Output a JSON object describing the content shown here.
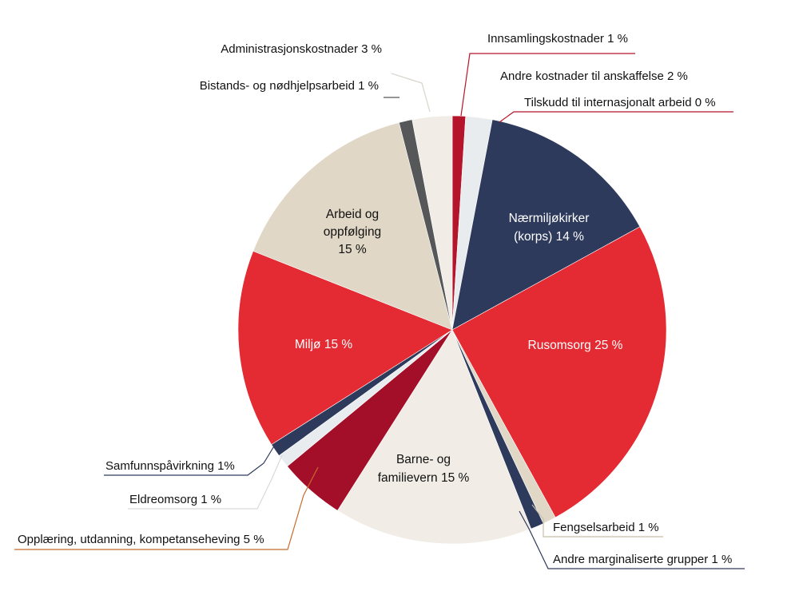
{
  "chart_data": {
    "type": "pie",
    "slices": [
      {
        "label": "Innsamlingskostnader 1 %",
        "value": 1,
        "color": "#B5152B"
      },
      {
        "label": "Andre kostnader til anskaffelse 2 %",
        "value": 2,
        "color": "#E9ECEE"
      },
      {
        "label": "Tilskudd til internasjonalt arbeid 0 %",
        "value": 0,
        "color": "#B5152B"
      },
      {
        "label": "Nærmiljøkirker (korps) 14 %",
        "value": 14,
        "color": "#2E3A5C"
      },
      {
        "label": "Rusomsorg 25 %",
        "value": 25,
        "color": "#E42A32"
      },
      {
        "label": "Fengselsarbeid 1 %",
        "value": 1,
        "color": "#E0D7C6"
      },
      {
        "label": "Andre marginaliserte grupper 1 %",
        "value": 1,
        "color": "#2E3A5C"
      },
      {
        "label": "Barne- og familievern 15 %",
        "value": 15,
        "color": "#F1EDE6"
      },
      {
        "label": "Opplæring, utdanning, kompetanseheving 5 %",
        "value": 5,
        "color": "#A30E28"
      },
      {
        "label": "Eldreomsorg 1 %",
        "value": 1,
        "color": "#E9ECEE"
      },
      {
        "label": "Samfunnspåvirkning 1%",
        "value": 1,
        "color": "#2E3A5C"
      },
      {
        "label": "Miljø 15 %",
        "value": 15,
        "color": "#E42A32"
      },
      {
        "label": "Arbeid og oppfølging 15 %",
        "value": 15,
        "color": "#E0D7C6"
      },
      {
        "label": "Bistands- og nødhjelpsarbeid 1 %",
        "value": 1,
        "color": "#555759"
      },
      {
        "label": "Administrasjonskostnader 3 %",
        "value": 3,
        "color": "#F1EDE6"
      }
    ]
  },
  "labels": {
    "innsamling": "Innsamlingskostnader 1 %",
    "andre_kostnader": "Andre kostnader til anskaffelse 2 %",
    "tilskudd": "Tilskudd til internasjonalt arbeid 0 %",
    "naermiljo_1": "Nærmiljøkirker",
    "naermiljo_2": "(korps) 14 %",
    "rusomsorg": "Rusomsorg 25 %",
    "fengsel": "Fengselsarbeid 1 %",
    "andre_marg": "Andre marginaliserte grupper 1 %",
    "barne_1": "Barne- og",
    "barne_2": "familievern 15 %",
    "opplaering": "Opplæring, utdanning, kompetanseheving 5 %",
    "eldre": "Eldreomsorg 1 %",
    "samfunn": "Samfunnspåvirkning 1%",
    "miljo": "Miljø 15 %",
    "arbeid_1": "Arbeid og",
    "arbeid_2": "oppfølging",
    "arbeid_3": "15 %",
    "bistand": "Bistands- og nødhjelpsarbeid 1 %",
    "admin": "Administrasjonskostnader 3 %"
  }
}
